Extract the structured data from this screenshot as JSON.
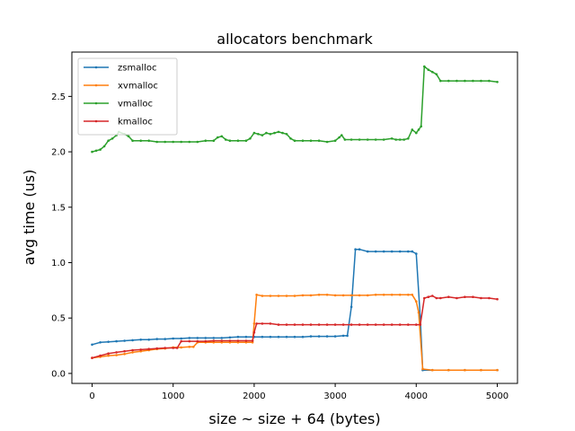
{
  "chart_data": {
    "type": "line",
    "title": "allocators benchmark",
    "xlabel": "size ~ size + 64 (bytes)",
    "ylabel": "avg time (us)",
    "xlim": [
      -250,
      5250
    ],
    "ylim": [
      -0.09,
      2.9
    ],
    "x_ticks": [
      0,
      1000,
      2000,
      3000,
      4000,
      5000
    ],
    "y_ticks": [
      0.0,
      0.5,
      1.0,
      1.5,
      2.0,
      2.5
    ],
    "x_tick_labels": [
      "0",
      "1000",
      "2000",
      "3000",
      "4000",
      "5000"
    ],
    "y_tick_labels": [
      "0.0",
      "0.5",
      "1.0",
      "1.5",
      "2.0",
      "2.5"
    ],
    "legend_position": "top-left",
    "grid": false,
    "series": [
      {
        "name": "zsmalloc",
        "color": "#1f77b4",
        "points": [
          [
            0,
            0.26
          ],
          [
            100,
            0.28
          ],
          [
            200,
            0.285
          ],
          [
            300,
            0.29
          ],
          [
            400,
            0.295
          ],
          [
            500,
            0.3
          ],
          [
            600,
            0.305
          ],
          [
            700,
            0.305
          ],
          [
            800,
            0.31
          ],
          [
            900,
            0.31
          ],
          [
            1000,
            0.315
          ],
          [
            1100,
            0.315
          ],
          [
            1200,
            0.32
          ],
          [
            1300,
            0.32
          ],
          [
            1400,
            0.32
          ],
          [
            1500,
            0.32
          ],
          [
            1600,
            0.32
          ],
          [
            1700,
            0.325
          ],
          [
            1800,
            0.33
          ],
          [
            1900,
            0.33
          ],
          [
            2000,
            0.33
          ],
          [
            2100,
            0.33
          ],
          [
            2200,
            0.33
          ],
          [
            2300,
            0.33
          ],
          [
            2400,
            0.33
          ],
          [
            2500,
            0.33
          ],
          [
            2600,
            0.33
          ],
          [
            2700,
            0.335
          ],
          [
            2800,
            0.335
          ],
          [
            2900,
            0.335
          ],
          [
            3000,
            0.335
          ],
          [
            3100,
            0.34
          ],
          [
            3150,
            0.34
          ],
          [
            3200,
            0.6
          ],
          [
            3250,
            1.12
          ],
          [
            3300,
            1.12
          ],
          [
            3400,
            1.1
          ],
          [
            3500,
            1.1
          ],
          [
            3600,
            1.1
          ],
          [
            3700,
            1.1
          ],
          [
            3800,
            1.1
          ],
          [
            3900,
            1.1
          ],
          [
            3950,
            1.1
          ],
          [
            4000,
            1.08
          ],
          [
            4050,
            0.5
          ],
          [
            4080,
            0.03
          ],
          [
            4200,
            0.03
          ],
          [
            4400,
            0.03
          ],
          [
            4600,
            0.03
          ],
          [
            4800,
            0.03
          ],
          [
            5000,
            0.03
          ]
        ]
      },
      {
        "name": "xvmalloc",
        "color": "#ff7f0e",
        "points": [
          [
            0,
            0.14
          ],
          [
            100,
            0.15
          ],
          [
            200,
            0.16
          ],
          [
            300,
            0.165
          ],
          [
            400,
            0.175
          ],
          [
            500,
            0.19
          ],
          [
            600,
            0.2
          ],
          [
            700,
            0.21
          ],
          [
            800,
            0.22
          ],
          [
            900,
            0.225
          ],
          [
            1000,
            0.235
          ],
          [
            1100,
            0.235
          ],
          [
            1200,
            0.24
          ],
          [
            1250,
            0.24
          ],
          [
            1300,
            0.28
          ],
          [
            1400,
            0.28
          ],
          [
            1500,
            0.28
          ],
          [
            1600,
            0.28
          ],
          [
            1700,
            0.28
          ],
          [
            1800,
            0.28
          ],
          [
            1900,
            0.28
          ],
          [
            1980,
            0.28
          ],
          [
            2000,
            0.45
          ],
          [
            2030,
            0.71
          ],
          [
            2100,
            0.7
          ],
          [
            2200,
            0.7
          ],
          [
            2300,
            0.7
          ],
          [
            2400,
            0.7
          ],
          [
            2500,
            0.7
          ],
          [
            2600,
            0.705
          ],
          [
            2700,
            0.705
          ],
          [
            2800,
            0.71
          ],
          [
            2900,
            0.71
          ],
          [
            3000,
            0.705
          ],
          [
            3100,
            0.705
          ],
          [
            3200,
            0.705
          ],
          [
            3300,
            0.705
          ],
          [
            3400,
            0.705
          ],
          [
            3500,
            0.71
          ],
          [
            3600,
            0.71
          ],
          [
            3700,
            0.71
          ],
          [
            3800,
            0.71
          ],
          [
            3900,
            0.71
          ],
          [
            3950,
            0.71
          ],
          [
            4000,
            0.65
          ],
          [
            4030,
            0.55
          ],
          [
            4080,
            0.04
          ],
          [
            4200,
            0.03
          ],
          [
            4400,
            0.03
          ],
          [
            4600,
            0.03
          ],
          [
            4800,
            0.03
          ],
          [
            5000,
            0.03
          ]
        ]
      },
      {
        "name": "vmalloc",
        "color": "#2ca02c",
        "points": [
          [
            0,
            2.0
          ],
          [
            50,
            2.01
          ],
          [
            100,
            2.02
          ],
          [
            150,
            2.05
          ],
          [
            200,
            2.1
          ],
          [
            250,
            2.12
          ],
          [
            300,
            2.15
          ],
          [
            330,
            2.18
          ],
          [
            400,
            2.16
          ],
          [
            450,
            2.14
          ],
          [
            500,
            2.1
          ],
          [
            600,
            2.1
          ],
          [
            700,
            2.1
          ],
          [
            800,
            2.09
          ],
          [
            900,
            2.09
          ],
          [
            1000,
            2.09
          ],
          [
            1100,
            2.09
          ],
          [
            1200,
            2.09
          ],
          [
            1300,
            2.09
          ],
          [
            1400,
            2.1
          ],
          [
            1500,
            2.1
          ],
          [
            1550,
            2.13
          ],
          [
            1600,
            2.14
          ],
          [
            1650,
            2.11
          ],
          [
            1700,
            2.1
          ],
          [
            1800,
            2.1
          ],
          [
            1900,
            2.1
          ],
          [
            1950,
            2.12
          ],
          [
            2000,
            2.17
          ],
          [
            2050,
            2.16
          ],
          [
            2100,
            2.15
          ],
          [
            2150,
            2.17
          ],
          [
            2200,
            2.16
          ],
          [
            2250,
            2.17
          ],
          [
            2300,
            2.18
          ],
          [
            2350,
            2.17
          ],
          [
            2400,
            2.16
          ],
          [
            2450,
            2.12
          ],
          [
            2500,
            2.1
          ],
          [
            2600,
            2.1
          ],
          [
            2700,
            2.1
          ],
          [
            2800,
            2.1
          ],
          [
            2900,
            2.09
          ],
          [
            3000,
            2.1
          ],
          [
            3050,
            2.13
          ],
          [
            3080,
            2.15
          ],
          [
            3120,
            2.11
          ],
          [
            3200,
            2.11
          ],
          [
            3300,
            2.11
          ],
          [
            3400,
            2.11
          ],
          [
            3500,
            2.11
          ],
          [
            3600,
            2.11
          ],
          [
            3700,
            2.12
          ],
          [
            3750,
            2.11
          ],
          [
            3800,
            2.11
          ],
          [
            3850,
            2.11
          ],
          [
            3900,
            2.12
          ],
          [
            3950,
            2.2
          ],
          [
            4000,
            2.17
          ],
          [
            4030,
            2.2
          ],
          [
            4060,
            2.23
          ],
          [
            4100,
            2.77
          ],
          [
            4150,
            2.74
          ],
          [
            4200,
            2.72
          ],
          [
            4250,
            2.7
          ],
          [
            4300,
            2.64
          ],
          [
            4400,
            2.64
          ],
          [
            4500,
            2.64
          ],
          [
            4600,
            2.64
          ],
          [
            4700,
            2.64
          ],
          [
            4800,
            2.64
          ],
          [
            4900,
            2.64
          ],
          [
            5000,
            2.63
          ]
        ]
      },
      {
        "name": "kmalloc",
        "color": "#d62728",
        "points": [
          [
            0,
            0.14
          ],
          [
            100,
            0.16
          ],
          [
            200,
            0.18
          ],
          [
            300,
            0.19
          ],
          [
            400,
            0.2
          ],
          [
            500,
            0.21
          ],
          [
            600,
            0.215
          ],
          [
            700,
            0.22
          ],
          [
            800,
            0.225
          ],
          [
            900,
            0.23
          ],
          [
            1000,
            0.23
          ],
          [
            1050,
            0.23
          ],
          [
            1100,
            0.29
          ],
          [
            1200,
            0.29
          ],
          [
            1300,
            0.29
          ],
          [
            1400,
            0.29
          ],
          [
            1500,
            0.295
          ],
          [
            1600,
            0.295
          ],
          [
            1700,
            0.295
          ],
          [
            1800,
            0.295
          ],
          [
            1900,
            0.295
          ],
          [
            1980,
            0.295
          ],
          [
            2000,
            0.37
          ],
          [
            2030,
            0.45
          ],
          [
            2100,
            0.45
          ],
          [
            2200,
            0.45
          ],
          [
            2300,
            0.44
          ],
          [
            2400,
            0.44
          ],
          [
            2500,
            0.44
          ],
          [
            2600,
            0.44
          ],
          [
            2700,
            0.44
          ],
          [
            2800,
            0.44
          ],
          [
            2900,
            0.44
          ],
          [
            3000,
            0.44
          ],
          [
            3100,
            0.44
          ],
          [
            3200,
            0.44
          ],
          [
            3300,
            0.44
          ],
          [
            3400,
            0.44
          ],
          [
            3500,
            0.44
          ],
          [
            3600,
            0.44
          ],
          [
            3700,
            0.44
          ],
          [
            3800,
            0.44
          ],
          [
            3900,
            0.44
          ],
          [
            4000,
            0.44
          ],
          [
            4050,
            0.44
          ],
          [
            4100,
            0.68
          ],
          [
            4150,
            0.69
          ],
          [
            4200,
            0.7
          ],
          [
            4250,
            0.68
          ],
          [
            4300,
            0.68
          ],
          [
            4400,
            0.69
          ],
          [
            4500,
            0.68
          ],
          [
            4600,
            0.69
          ],
          [
            4700,
            0.69
          ],
          [
            4800,
            0.68
          ],
          [
            4900,
            0.68
          ],
          [
            5000,
            0.67
          ]
        ]
      }
    ]
  }
}
